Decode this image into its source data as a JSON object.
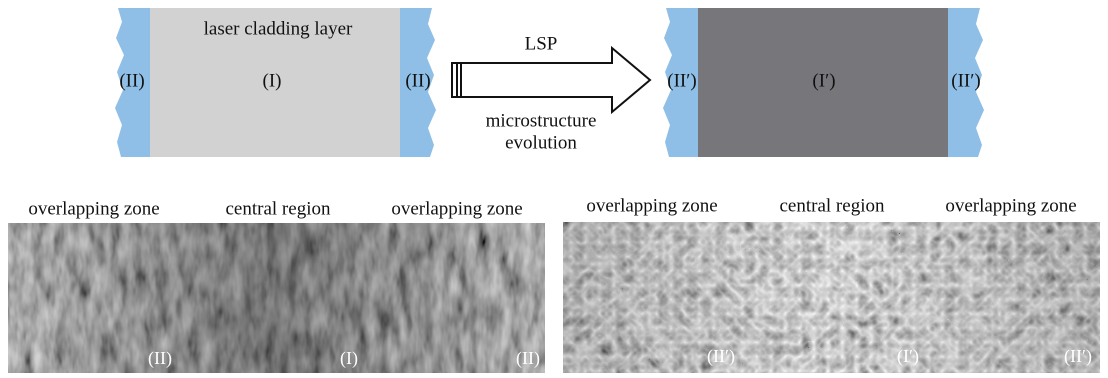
{
  "top": {
    "left_panel": {
      "title": "laser cladding layer",
      "labels": [
        "(II)",
        "(I)",
        "(II)"
      ]
    },
    "arrow": {
      "above": "LSP",
      "below": [
        "microstructure",
        "evolution"
      ]
    },
    "right_panel": {
      "labels": [
        "(II′)",
        "(I′)",
        "(II′)"
      ]
    }
  },
  "bottom": {
    "left_image": {
      "headers": [
        "overlapping zone",
        "central region",
        "overlapping zone"
      ],
      "labels": [
        "(II)",
        "(I)",
        "(II)"
      ]
    },
    "right_image": {
      "headers": [
        "overlapping zone",
        "central region",
        "overlapping zone"
      ],
      "labels": [
        "(II′)",
        "(I′)",
        "(II′)"
      ]
    }
  }
}
